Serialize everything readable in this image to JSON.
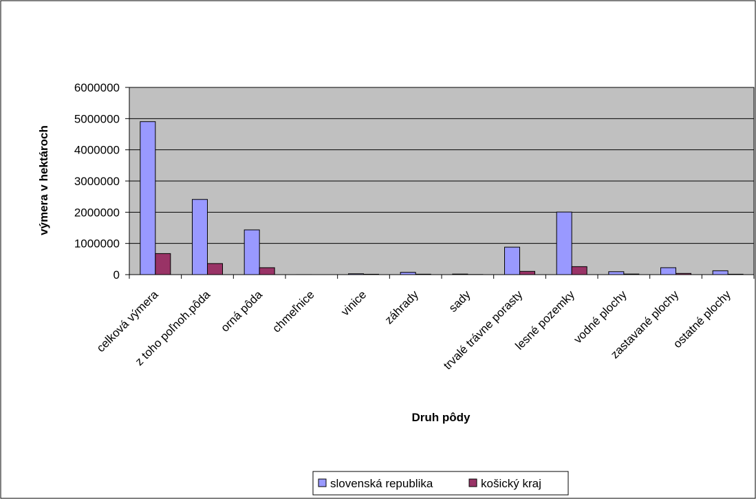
{
  "chart_data": {
    "type": "bar",
    "title": "",
    "xlabel": "Druh pôdy",
    "ylabel": "výmera v hektároch",
    "ylim": [
      0,
      6000000
    ],
    "yticks": [
      0,
      1000000,
      2000000,
      3000000,
      4000000,
      5000000,
      6000000
    ],
    "grid": true,
    "legend_position": "bottom",
    "categories": [
      "celková výmera",
      "z toho poľnoh.pôda",
      "orná pôda",
      "chmeľnice",
      "vinice",
      "záhrady",
      "sady",
      "trvalé trávne porasty",
      "lesné pozemky",
      "vodné plochy",
      "zastavané plochy",
      "ostatné plochy"
    ],
    "series": [
      {
        "name": "slovenská republika",
        "color": "#9999ff",
        "values": [
          4903400,
          2410000,
          1434000,
          800,
          27000,
          74000,
          18000,
          880000,
          2006000,
          94000,
          222000,
          124000
        ]
      },
      {
        "name": "košický kraj",
        "color": "#993366",
        "values": [
          675000,
          355000,
          222000,
          0,
          12000,
          14000,
          4000,
          104000,
          256000,
          19000,
          38000,
          13000
        ]
      }
    ],
    "colors": {
      "plot_background": "#c0c0c0",
      "gridline": "#000000"
    }
  }
}
